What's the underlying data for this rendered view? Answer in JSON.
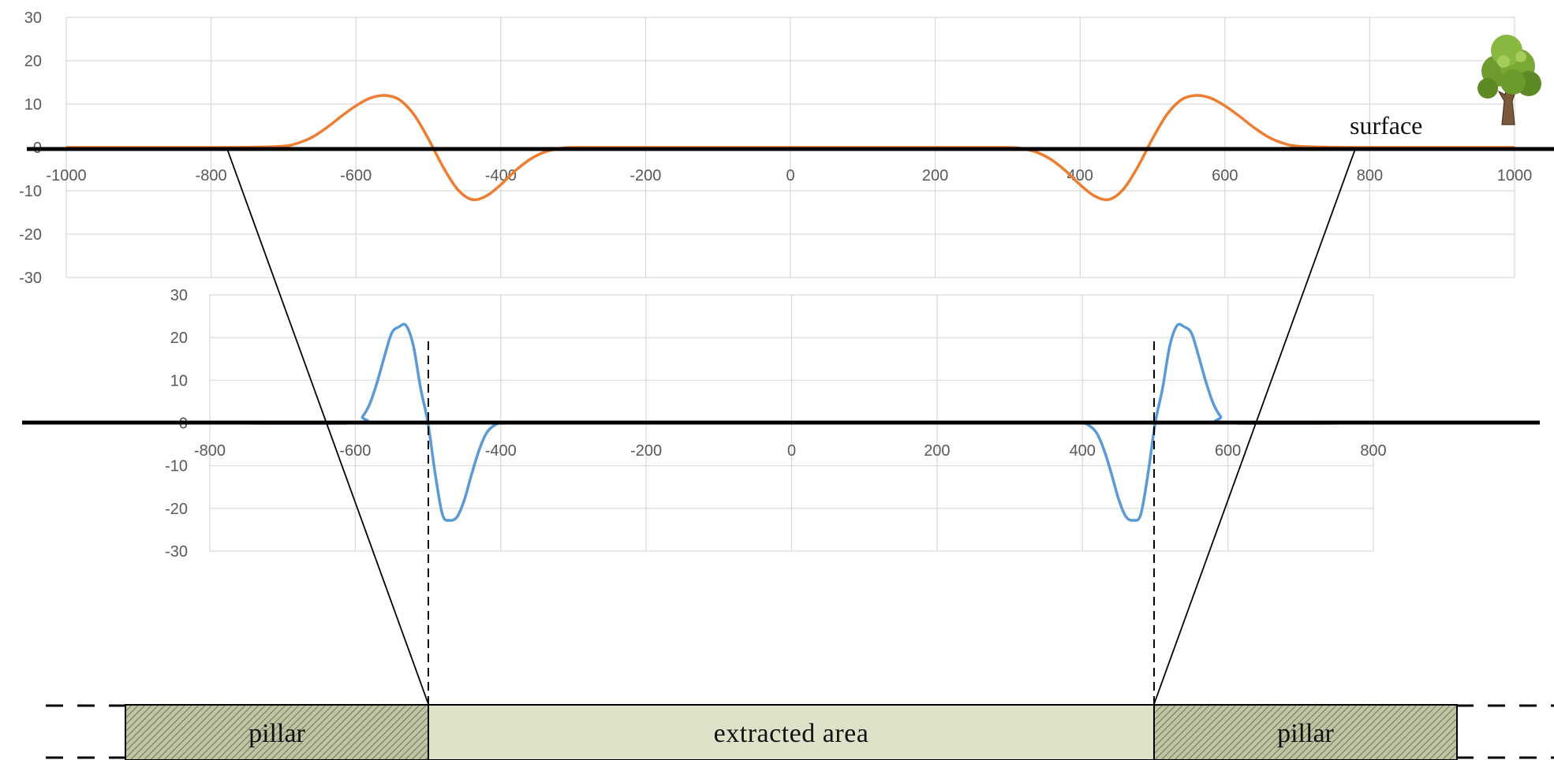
{
  "chart_data": [
    {
      "type": "line",
      "series": [
        {
          "color": "#ED7D31",
          "x": [
            -1000,
            -800,
            -750,
            -700,
            -680,
            -660,
            -640,
            -620,
            -600,
            -580,
            -560,
            -540,
            -520,
            -500,
            -480,
            -460,
            -440,
            -420,
            -400,
            -380,
            -360,
            -340,
            -320,
            -300,
            -200,
            0,
            200,
            300,
            320,
            340,
            360,
            380,
            400,
            420,
            440,
            460,
            480,
            500,
            520,
            540,
            560,
            580,
            600,
            620,
            640,
            660,
            680,
            700,
            750,
            800,
            1000
          ],
          "y": [
            0,
            0,
            0.05,
            0.3,
            1.0,
            2.4,
            4.6,
            7.2,
            9.6,
            11.4,
            12,
            11.0,
            7.6,
            2,
            -4.4,
            -9.6,
            -12,
            -11.2,
            -8.6,
            -5.4,
            -2.8,
            -1.1,
            -0.3,
            0,
            0,
            0,
            0,
            0,
            -0.3,
            -1.1,
            -2.8,
            -5.4,
            -8.6,
            -11.2,
            -12,
            -9.6,
            -4.4,
            2,
            7.6,
            11.0,
            12,
            11.4,
            9.6,
            7.2,
            4.6,
            2.4,
            1.0,
            0.3,
            0.05,
            0,
            0
          ]
        }
      ],
      "xlim": [
        -1000,
        1000
      ],
      "ylim": [
        -30,
        30
      ],
      "xticks": [
        "-1000",
        "-800",
        "-600",
        "-400",
        "-200",
        "0",
        "200",
        "400",
        "600",
        "800",
        "1000"
      ],
      "yticks": [
        "30",
        "20",
        "10",
        "0",
        "-10",
        "-20",
        "-30"
      ],
      "grid": true
    },
    {
      "type": "line",
      "series": [
        {
          "color": "#5B9BD5",
          "x": [
            -800,
            -600,
            -590,
            -580,
            -570,
            -560,
            -550,
            -540,
            -530,
            -520,
            -510,
            -500,
            -490,
            -480,
            -470,
            -460,
            -450,
            -440,
            -430,
            -420,
            -410,
            -400,
            -380,
            380,
            400,
            410,
            420,
            430,
            440,
            450,
            460,
            470,
            480,
            490,
            500,
            510,
            520,
            530,
            540,
            550,
            560,
            570,
            580,
            590,
            600,
            800
          ],
          "y": [
            0,
            0,
            1.5,
            4.5,
            9.5,
            15.5,
            21,
            22.5,
            22.8,
            18,
            8,
            0,
            -12,
            -21.5,
            -22.8,
            -22,
            -18,
            -12,
            -6.5,
            -2.5,
            -0.7,
            0,
            0,
            0,
            0,
            -0.7,
            -2.5,
            -6.5,
            -12,
            -18,
            -22,
            -22.8,
            -21.5,
            -12,
            0,
            8,
            18,
            22.8,
            22.5,
            21,
            15.5,
            9.5,
            4.5,
            1.5,
            0,
            0
          ]
        }
      ],
      "xlim": [
        -800,
        800
      ],
      "ylim": [
        -30,
        30
      ],
      "xticks": [
        "-800",
        "-600",
        "-400",
        "-200",
        "0",
        "200",
        "400",
        "600",
        "800"
      ],
      "yticks": [
        "30",
        "20",
        "10",
        "0",
        "-10",
        "-20",
        "-30"
      ],
      "grid": true
    }
  ],
  "labels": {
    "surface": "surface",
    "extracted": "extracted area",
    "pillar_left": "pillar",
    "pillar_right": "pillar"
  },
  "colors": {
    "extracted_fill": "#DCE3C8",
    "pillar_fill": "#B7BC9A",
    "line": "#000000"
  },
  "icons": {
    "tree": "tree-icon"
  }
}
